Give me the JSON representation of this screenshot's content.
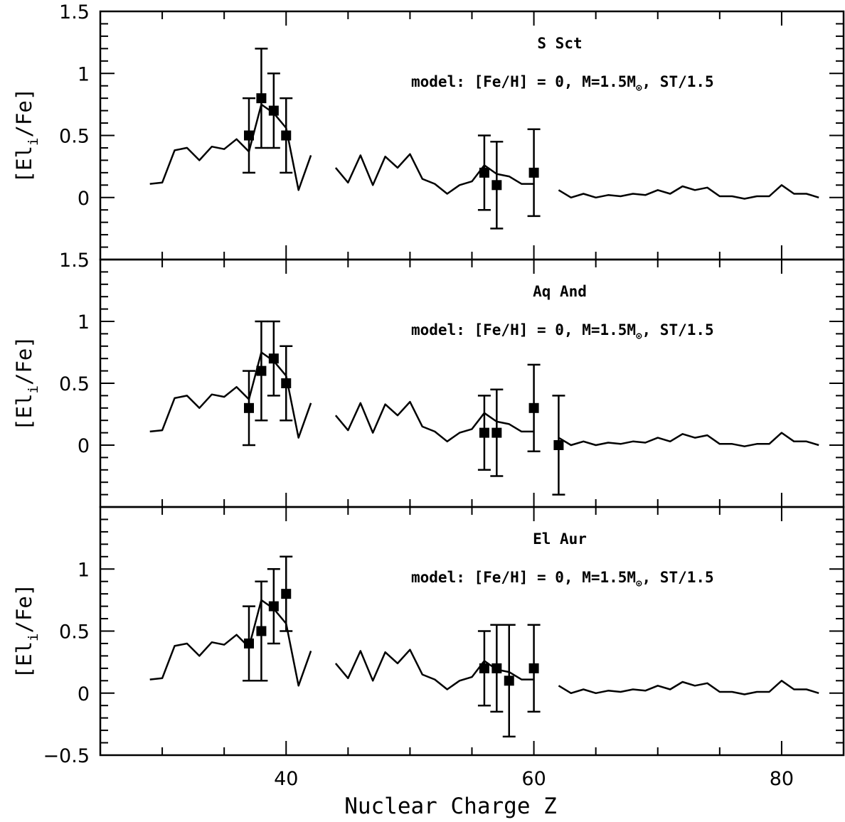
{
  "chart_data": [
    {
      "type": "scatter",
      "title": "S Sct",
      "annotation": {
        "pre": "model: [Fe/H] = 0, M=1.5M",
        "sym": "⊙",
        "post": ", ST/1.5"
      },
      "ylabel": {
        "main": "[El",
        "sub": "i",
        "tail": "/Fe]"
      },
      "xlabel": "",
      "xlim": [
        25,
        85
      ],
      "ylim": [
        -0.5,
        1.5
      ],
      "yticks": [
        "0",
        "0.5",
        "1",
        "1.5"
      ],
      "xticks": [],
      "model_segments": [
        [
          [
            29,
            0.11
          ],
          [
            30,
            0.12
          ],
          [
            31,
            0.38
          ],
          [
            32,
            0.4
          ],
          [
            33,
            0.3
          ],
          [
            34,
            0.41
          ],
          [
            35,
            0.39
          ],
          [
            36,
            0.47
          ],
          [
            37,
            0.37
          ],
          [
            38,
            0.75
          ],
          [
            39,
            0.68
          ],
          [
            40,
            0.56
          ],
          [
            41,
            0.06
          ],
          [
            42,
            0.34
          ]
        ],
        [
          [
            44,
            0.24
          ],
          [
            45,
            0.12
          ],
          [
            46,
            0.34
          ],
          [
            47,
            0.1
          ],
          [
            48,
            0.33
          ],
          [
            49,
            0.24
          ],
          [
            50,
            0.35
          ],
          [
            51,
            0.15
          ],
          [
            52,
            0.11
          ],
          [
            53,
            0.03
          ],
          [
            54,
            0.1
          ],
          [
            55,
            0.13
          ],
          [
            56,
            0.26
          ],
          [
            57,
            0.19
          ],
          [
            58,
            0.17
          ],
          [
            59,
            0.11
          ],
          [
            60,
            0.11
          ]
        ],
        [
          [
            62,
            0.06
          ],
          [
            63,
            0.0
          ],
          [
            64,
            0.03
          ],
          [
            65,
            0.0
          ],
          [
            66,
            0.02
          ],
          [
            67,
            0.01
          ],
          [
            68,
            0.03
          ],
          [
            69,
            0.02
          ],
          [
            70,
            0.06
          ],
          [
            71,
            0.03
          ],
          [
            72,
            0.09
          ],
          [
            73,
            0.06
          ],
          [
            74,
            0.08
          ],
          [
            75,
            0.01
          ],
          [
            76,
            0.01
          ],
          [
            77,
            -0.01
          ],
          [
            78,
            0.01
          ],
          [
            79,
            0.01
          ],
          [
            80,
            0.1
          ],
          [
            81,
            0.03
          ],
          [
            82,
            0.03
          ],
          [
            83,
            0.0
          ]
        ]
      ],
      "observations": [
        {
          "z": 37,
          "value": 0.5,
          "err": 0.3
        },
        {
          "z": 38,
          "value": 0.8,
          "err": 0.4
        },
        {
          "z": 39,
          "value": 0.7,
          "err": 0.3
        },
        {
          "z": 40,
          "value": 0.5,
          "err": 0.3
        },
        {
          "z": 56,
          "value": 0.2,
          "err": 0.3
        },
        {
          "z": 57,
          "value": 0.1,
          "err": 0.35
        },
        {
          "z": 60,
          "value": 0.2,
          "err": 0.35
        }
      ]
    },
    {
      "type": "scatter",
      "title": "Aq And",
      "annotation": {
        "pre": "model: [Fe/H] = 0, M=1.5M",
        "sym": "⊙",
        "post": ", ST/1.5"
      },
      "ylabel": {
        "main": "[El",
        "sub": "i",
        "tail": "/Fe]"
      },
      "xlabel": "",
      "xlim": [
        25,
        85
      ],
      "ylim": [
        -0.5,
        1.5
      ],
      "yticks": [
        "0",
        "0.5",
        "1",
        "1.5"
      ],
      "xticks": [],
      "model_segments": [
        [
          [
            29,
            0.11
          ],
          [
            30,
            0.12
          ],
          [
            31,
            0.38
          ],
          [
            32,
            0.4
          ],
          [
            33,
            0.3
          ],
          [
            34,
            0.41
          ],
          [
            35,
            0.39
          ],
          [
            36,
            0.47
          ],
          [
            37,
            0.37
          ],
          [
            38,
            0.75
          ],
          [
            39,
            0.68
          ],
          [
            40,
            0.56
          ],
          [
            41,
            0.06
          ],
          [
            42,
            0.34
          ]
        ],
        [
          [
            44,
            0.24
          ],
          [
            45,
            0.12
          ],
          [
            46,
            0.34
          ],
          [
            47,
            0.1
          ],
          [
            48,
            0.33
          ],
          [
            49,
            0.24
          ],
          [
            50,
            0.35
          ],
          [
            51,
            0.15
          ],
          [
            52,
            0.11
          ],
          [
            53,
            0.03
          ],
          [
            54,
            0.1
          ],
          [
            55,
            0.13
          ],
          [
            56,
            0.26
          ],
          [
            57,
            0.19
          ],
          [
            58,
            0.17
          ],
          [
            59,
            0.11
          ],
          [
            60,
            0.11
          ]
        ],
        [
          [
            62,
            0.06
          ],
          [
            63,
            0.0
          ],
          [
            64,
            0.03
          ],
          [
            65,
            0.0
          ],
          [
            66,
            0.02
          ],
          [
            67,
            0.01
          ],
          [
            68,
            0.03
          ],
          [
            69,
            0.02
          ],
          [
            70,
            0.06
          ],
          [
            71,
            0.03
          ],
          [
            72,
            0.09
          ],
          [
            73,
            0.06
          ],
          [
            74,
            0.08
          ],
          [
            75,
            0.01
          ],
          [
            76,
            0.01
          ],
          [
            77,
            -0.01
          ],
          [
            78,
            0.01
          ],
          [
            79,
            0.01
          ],
          [
            80,
            0.1
          ],
          [
            81,
            0.03
          ],
          [
            82,
            0.03
          ],
          [
            83,
            0.0
          ]
        ]
      ],
      "observations": [
        {
          "z": 37,
          "value": 0.3,
          "err": 0.3
        },
        {
          "z": 38,
          "value": 0.6,
          "err": 0.4
        },
        {
          "z": 39,
          "value": 0.7,
          "err": 0.3
        },
        {
          "z": 40,
          "value": 0.5,
          "err": 0.3
        },
        {
          "z": 56,
          "value": 0.1,
          "err": 0.3
        },
        {
          "z": 57,
          "value": 0.1,
          "err": 0.35
        },
        {
          "z": 60,
          "value": 0.3,
          "err": 0.35
        },
        {
          "z": 62,
          "value": 0.0,
          "err": 0.4
        }
      ]
    },
    {
      "type": "scatter",
      "title": "El Aur",
      "annotation": {
        "pre": "model: [Fe/H] = 0, M=1.5M",
        "sym": "⊙",
        "post": ", ST/1.5"
      },
      "ylabel": {
        "main": "[El",
        "sub": "i",
        "tail": "/Fe]"
      },
      "xlabel": "Nuclear Charge Z",
      "xlim": [
        25,
        85
      ],
      "ylim": [
        -0.5,
        1.5
      ],
      "yticks": [
        "−0.5",
        "0",
        "0.5",
        "1"
      ],
      "xticks": [
        "40",
        "60",
        "80"
      ],
      "model_segments": [
        [
          [
            29,
            0.11
          ],
          [
            30,
            0.12
          ],
          [
            31,
            0.38
          ],
          [
            32,
            0.4
          ],
          [
            33,
            0.3
          ],
          [
            34,
            0.41
          ],
          [
            35,
            0.39
          ],
          [
            36,
            0.47
          ],
          [
            37,
            0.37
          ],
          [
            38,
            0.75
          ],
          [
            39,
            0.68
          ],
          [
            40,
            0.56
          ],
          [
            41,
            0.06
          ],
          [
            42,
            0.34
          ]
        ],
        [
          [
            44,
            0.24
          ],
          [
            45,
            0.12
          ],
          [
            46,
            0.34
          ],
          [
            47,
            0.1
          ],
          [
            48,
            0.33
          ],
          [
            49,
            0.24
          ],
          [
            50,
            0.35
          ],
          [
            51,
            0.15
          ],
          [
            52,
            0.11
          ],
          [
            53,
            0.03
          ],
          [
            54,
            0.1
          ],
          [
            55,
            0.13
          ],
          [
            56,
            0.26
          ],
          [
            57,
            0.19
          ],
          [
            58,
            0.17
          ],
          [
            59,
            0.11
          ],
          [
            60,
            0.11
          ]
        ],
        [
          [
            62,
            0.06
          ],
          [
            63,
            0.0
          ],
          [
            64,
            0.03
          ],
          [
            65,
            0.0
          ],
          [
            66,
            0.02
          ],
          [
            67,
            0.01
          ],
          [
            68,
            0.03
          ],
          [
            69,
            0.02
          ],
          [
            70,
            0.06
          ],
          [
            71,
            0.03
          ],
          [
            72,
            0.09
          ],
          [
            73,
            0.06
          ],
          [
            74,
            0.08
          ],
          [
            75,
            0.01
          ],
          [
            76,
            0.01
          ],
          [
            77,
            -0.01
          ],
          [
            78,
            0.01
          ],
          [
            79,
            0.01
          ],
          [
            80,
            0.1
          ],
          [
            81,
            0.03
          ],
          [
            82,
            0.03
          ],
          [
            83,
            0.0
          ]
        ]
      ],
      "observations": [
        {
          "z": 37,
          "value": 0.4,
          "err": 0.3
        },
        {
          "z": 38,
          "value": 0.5,
          "err": 0.4
        },
        {
          "z": 39,
          "value": 0.7,
          "err": 0.3
        },
        {
          "z": 40,
          "value": 0.8,
          "err": 0.3
        },
        {
          "z": 56,
          "value": 0.2,
          "err": 0.3
        },
        {
          "z": 57,
          "value": 0.2,
          "err": 0.35
        },
        {
          "z": 58,
          "value": 0.1,
          "err": 0.45
        },
        {
          "z": 60,
          "value": 0.2,
          "err": 0.35
        }
      ]
    }
  ]
}
